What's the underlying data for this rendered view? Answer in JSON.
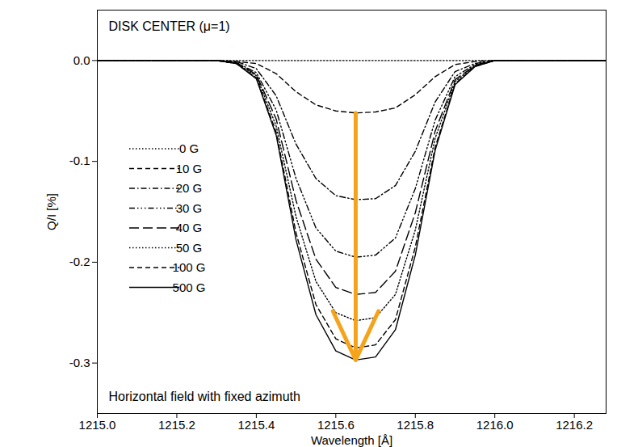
{
  "chart_data": {
    "type": "line",
    "annotations": [
      "DISK CENTER (μ=1)",
      "Horizontal field with fixed azimuth"
    ],
    "x_label": "Wavelength [Å]",
    "y_label": "Q/I [%]",
    "x": [
      1215.0,
      1215.3,
      1215.35,
      1215.4,
      1215.45,
      1215.5,
      1215.55,
      1215.6,
      1215.65,
      1215.7,
      1215.75,
      1215.8,
      1215.85,
      1215.9,
      1215.95,
      1216.0,
      1216.28
    ],
    "series": [
      {
        "name": "0 G",
        "color": "#000000",
        "line_style": "dotted",
        "values": [
          0,
          0,
          0,
          0,
          0,
          0,
          0,
          0,
          0,
          0,
          0,
          0,
          0,
          0,
          0,
          0,
          0
        ]
      },
      {
        "name": "10 G",
        "color": "#000000",
        "line_style": "dashed",
        "values": [
          0,
          0,
          -0.001,
          -0.003,
          -0.013,
          -0.031,
          -0.044,
          -0.05,
          -0.052,
          -0.051,
          -0.047,
          -0.034,
          -0.016,
          -0.004,
          -0.001,
          0,
          0
        ]
      },
      {
        "name": "20 G",
        "color": "#000000",
        "line_style": "dashdot",
        "values": [
          0,
          0,
          -0.001,
          -0.008,
          -0.035,
          -0.083,
          -0.117,
          -0.134,
          -0.138,
          -0.137,
          -0.124,
          -0.09,
          -0.041,
          -0.011,
          -0.003,
          0,
          0
        ]
      },
      {
        "name": "30 G",
        "color": "#000000",
        "line_style": "dashdotdot",
        "values": [
          0,
          0,
          -0.002,
          -0.012,
          -0.049,
          -0.117,
          -0.166,
          -0.189,
          -0.195,
          -0.193,
          -0.176,
          -0.127,
          -0.059,
          -0.016,
          -0.004,
          0,
          0
        ]
      },
      {
        "name": "40 G",
        "color": "#000000",
        "line_style": "longdash",
        "values": [
          0,
          0,
          -0.002,
          -0.014,
          -0.058,
          -0.139,
          -0.197,
          -0.225,
          -0.232,
          -0.23,
          -0.209,
          -0.151,
          -0.07,
          -0.019,
          -0.005,
          0,
          0
        ]
      },
      {
        "name": "50 G",
        "color": "#000000",
        "line_style": "dotted",
        "values": [
          0,
          0,
          -0.003,
          -0.015,
          -0.065,
          -0.155,
          -0.219,
          -0.25,
          -0.258,
          -0.255,
          -0.232,
          -0.168,
          -0.077,
          -0.021,
          -0.005,
          0,
          0
        ]
      },
      {
        "name": "100 G",
        "color": "#000000",
        "line_style": "dashed",
        "values": [
          0,
          0,
          -0.003,
          -0.017,
          -0.071,
          -0.171,
          -0.242,
          -0.276,
          -0.285,
          -0.282,
          -0.257,
          -0.185,
          -0.086,
          -0.023,
          -0.006,
          0,
          0
        ]
      },
      {
        "name": "500 G",
        "color": "#000000",
        "line_style": "solid",
        "values": [
          0,
          0,
          -0.003,
          -0.018,
          -0.074,
          -0.178,
          -0.252,
          -0.288,
          -0.297,
          -0.294,
          -0.267,
          -0.193,
          -0.089,
          -0.024,
          -0.006,
          0,
          0
        ]
      }
    ],
    "xlim": [
      1215.0,
      1216.28
    ],
    "xticks": [
      {
        "value": 1215.0,
        "label": "1215.0"
      },
      1215.2,
      1215.4,
      1215.6,
      1215.8,
      {
        "value": 1216.0,
        "label": "1216.0"
      },
      1216.2
    ],
    "ylim": [
      -0.35,
      0.05
    ],
    "yticks": [
      -0.3,
      -0.2,
      -0.1,
      {
        "value": 0,
        "label": "0.0"
      }
    ],
    "legend": "left",
    "grid": false
  }
}
